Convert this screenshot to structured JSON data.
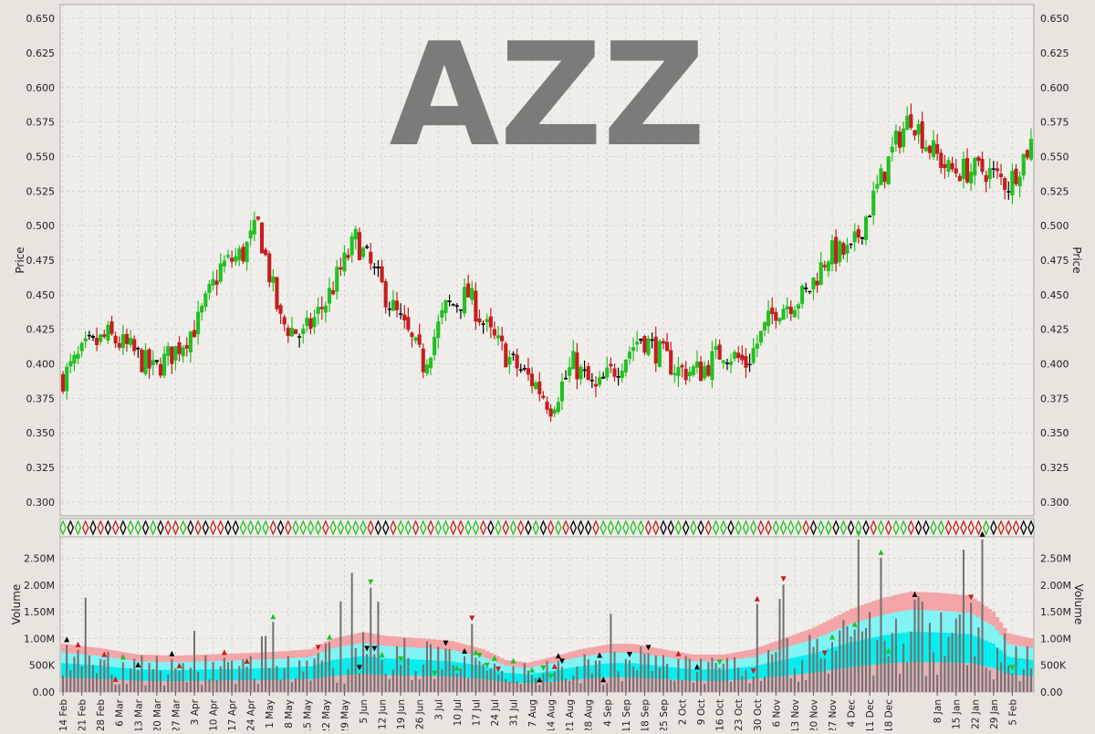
{
  "watermark": "AZZ",
  "colors": {
    "up": "#22c022",
    "down": "#c41e1e",
    "flat": "#000000",
    "panel_bg": "#f0eeea",
    "frame_bg": "#e8e5df",
    "band_outer": "#f4a5a8",
    "band_mid": "#7ff5f5",
    "band_inner": "#00eeee",
    "volume_bar": "#707070",
    "watermark": "#6e6e6e",
    "grid": "#cfcfcf"
  },
  "chart_data": [
    {
      "type": "candlestick",
      "title": "AZZ",
      "ylabel": "Price",
      "ylim": [
        0.29,
        0.66
      ],
      "yticks": [
        "0.300",
        "0.325",
        "0.350",
        "0.375",
        "0.400",
        "0.425",
        "0.450",
        "0.475",
        "0.500",
        "0.525",
        "0.550",
        "0.575",
        "0.600",
        "0.625",
        "0.650"
      ],
      "grid": true,
      "n_bars": 259,
      "anchor_closes": [
        [
          0,
          0.39
        ],
        [
          6,
          0.41
        ],
        [
          12,
          0.42
        ],
        [
          18,
          0.41
        ],
        [
          24,
          0.395
        ],
        [
          30,
          0.41
        ],
        [
          36,
          0.43
        ],
        [
          42,
          0.47
        ],
        [
          48,
          0.48
        ],
        [
          52,
          0.5
        ],
        [
          58,
          0.43
        ],
        [
          64,
          0.42
        ],
        [
          70,
          0.445
        ],
        [
          78,
          0.49
        ],
        [
          84,
          0.46
        ],
        [
          90,
          0.43
        ],
        [
          96,
          0.4
        ],
        [
          102,
          0.44
        ],
        [
          108,
          0.45
        ],
        [
          114,
          0.42
        ],
        [
          120,
          0.4
        ],
        [
          126,
          0.385
        ],
        [
          130,
          0.37
        ],
        [
          136,
          0.4
        ],
        [
          142,
          0.38
        ],
        [
          148,
          0.4
        ],
        [
          154,
          0.42
        ],
        [
          158,
          0.41
        ],
        [
          164,
          0.395
        ],
        [
          170,
          0.395
        ],
        [
          176,
          0.41
        ],
        [
          182,
          0.4
        ],
        [
          190,
          0.44
        ],
        [
          198,
          0.45
        ],
        [
          204,
          0.48
        ],
        [
          210,
          0.48
        ],
        [
          216,
          0.52
        ],
        [
          222,
          0.56
        ],
        [
          226,
          0.58
        ],
        [
          230,
          0.56
        ],
        [
          236,
          0.54
        ],
        [
          242,
          0.54
        ],
        [
          246,
          0.54
        ],
        [
          252,
          0.53
        ],
        [
          258,
          0.56
        ]
      ]
    },
    {
      "type": "bar",
      "ylabel": "Volume",
      "ylim": [
        0,
        2900000
      ],
      "yticks": [
        "0.00",
        "500K",
        "1.00M",
        "1.50M",
        "2.00M",
        "2.50M"
      ],
      "grid": true,
      "band_envelope_millions": [
        [
          0,
          0.9
        ],
        [
          10,
          0.82
        ],
        [
          20,
          0.7
        ],
        [
          30,
          0.68
        ],
        [
          38,
          0.7
        ],
        [
          46,
          0.72
        ],
        [
          56,
          0.75
        ],
        [
          66,
          0.8
        ],
        [
          72,
          1.0
        ],
        [
          80,
          1.12
        ],
        [
          86,
          1.05
        ],
        [
          96,
          1.0
        ],
        [
          104,
          0.95
        ],
        [
          112,
          0.8
        ],
        [
          118,
          0.6
        ],
        [
          124,
          0.55
        ],
        [
          130,
          0.65
        ],
        [
          138,
          0.8
        ],
        [
          146,
          0.9
        ],
        [
          152,
          0.9
        ],
        [
          160,
          0.8
        ],
        [
          168,
          0.7
        ],
        [
          176,
          0.7
        ],
        [
          184,
          0.8
        ],
        [
          192,
          1.0
        ],
        [
          200,
          1.2
        ],
        [
          210,
          1.55
        ],
        [
          218,
          1.75
        ],
        [
          226,
          1.88
        ],
        [
          234,
          1.85
        ],
        [
          242,
          1.8
        ],
        [
          248,
          1.5
        ],
        [
          252,
          1.1
        ],
        [
          258,
          1.0
        ]
      ]
    }
  ],
  "x_axis": {
    "labels": [
      "14 Feb",
      "21 Feb",
      "28 Feb",
      "6 Mar",
      "13 Mar",
      "20 Mar",
      "27 Mar",
      "3 Apr",
      "10 Apr",
      "17 Apr",
      "24 Apr",
      "1 May",
      "8 May",
      "15 May",
      "22 May",
      "29 May",
      "5 Jun",
      "12 Jun",
      "19 Jun",
      "26 Jun",
      "3 Jul",
      "10 Jul",
      "17 Jul",
      "24 Jul",
      "31 Jul",
      "7 Aug",
      "14 Aug",
      "21 Aug",
      "28 Aug",
      "4 Sep",
      "11 Sep",
      "18 Sep",
      "25 Sep",
      "2 Oct",
      "9 Oct",
      "16 Oct",
      "23 Oct",
      "30 Oct",
      "6 Nov",
      "13 Nov",
      "20 Nov",
      "27 Nov",
      "4 Dec",
      "11 Dec",
      "18 Dec",
      "8 Jan",
      "15 Jan",
      "22 Jan",
      "29 Jan",
      "5 Feb"
    ],
    "positions": [
      0,
      5,
      10,
      15,
      20,
      25,
      30,
      35,
      40,
      45,
      50,
      55,
      60,
      65,
      70,
      75,
      80,
      85,
      90,
      95,
      100,
      105,
      110,
      115,
      120,
      125,
      130,
      135,
      140,
      145,
      150,
      155,
      160,
      165,
      170,
      175,
      180,
      185,
      190,
      195,
      200,
      205,
      210,
      215,
      220,
      233,
      238,
      243,
      248,
      253
    ]
  }
}
